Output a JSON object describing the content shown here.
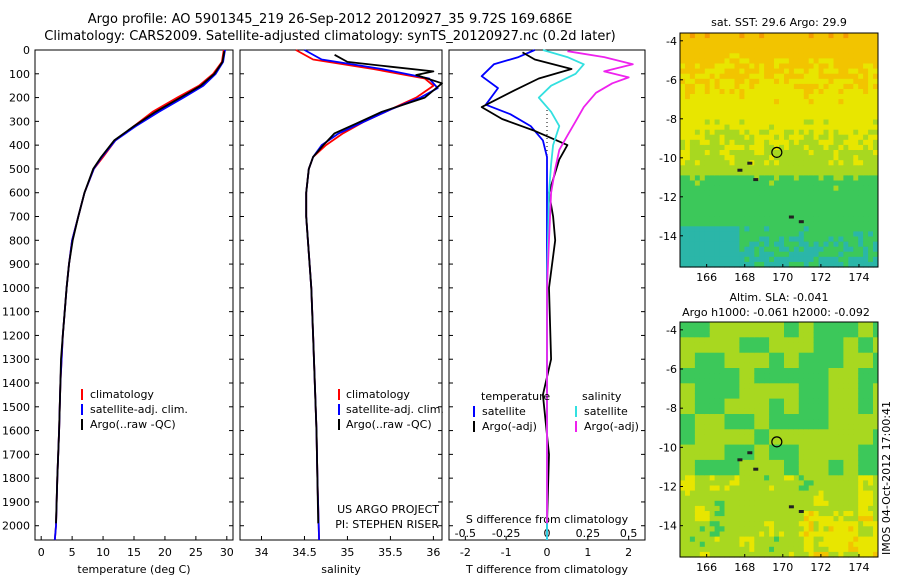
{
  "header": {
    "line1": "Argo profile: AO 5901345_219 26-Sep-2012 20120927_35 9.72S 169.686E",
    "line2": "Climatology: CARS2009. Satellite-adjusted climatology: synTS_20120927.nc (0.2d later)"
  },
  "colors": {
    "climatology": "#ff0000",
    "satellite": "#0000ff",
    "argo": "#000000",
    "sal_satellite": "#33e0e0",
    "sal_argo": "#ee22ee"
  },
  "chart_data": [
    {
      "type": "line",
      "xlabel": "temperature (deg C)",
      "ylabel": "",
      "xlim": [
        -1,
        31
      ],
      "ylim": [
        2060,
        0
      ],
      "xticks": [
        0,
        5,
        10,
        15,
        20,
        25,
        30
      ],
      "yticks": [
        0,
        100,
        200,
        300,
        400,
        500,
        600,
        700,
        800,
        900,
        1000,
        1100,
        1200,
        1300,
        1400,
        1500,
        1600,
        1700,
        1800,
        1900,
        2000
      ],
      "legend": [
        "climatology",
        "satellite-adj. clim.",
        "Argo(..raw -QC)"
      ],
      "series": [
        {
          "name": "climatology",
          "color": "#ff0000",
          "points": [
            [
              29.5,
              0
            ],
            [
              29.2,
              50
            ],
            [
              27.8,
              100
            ],
            [
              25.5,
              150
            ],
            [
              22,
              200
            ],
            [
              18,
              260
            ],
            [
              15,
              320
            ],
            [
              12,
              380
            ],
            [
              10,
              450
            ],
            [
              8.5,
              500
            ],
            [
              7,
              600
            ],
            [
              6,
              700
            ],
            [
              5,
              800
            ],
            [
              4.5,
              900
            ],
            [
              4.1,
              1000
            ],
            [
              3.8,
              1100
            ],
            [
              3.5,
              1200
            ],
            [
              3.3,
              1300
            ],
            [
              3.1,
              1400
            ],
            [
              2.9,
              1600
            ],
            [
              2.6,
              1800
            ],
            [
              2.4,
              2000
            ],
            [
              2.2,
              2060
            ]
          ]
        },
        {
          "name": "satellite-adj. clim.",
          "color": "#0000ff",
          "points": [
            [
              29.7,
              0
            ],
            [
              29.4,
              50
            ],
            [
              28.2,
              100
            ],
            [
              26.2,
              150
            ],
            [
              23,
              200
            ],
            [
              19,
              260
            ],
            [
              15.3,
              320
            ],
            [
              12,
              380
            ],
            [
              9.8,
              450
            ],
            [
              8.5,
              500
            ],
            [
              7,
              600
            ],
            [
              6,
              700
            ],
            [
              5,
              800
            ],
            [
              4.5,
              900
            ],
            [
              4.1,
              1000
            ],
            [
              3.8,
              1100
            ],
            [
              3.5,
              1200
            ],
            [
              3.3,
              1300
            ],
            [
              3.1,
              1400
            ],
            [
              2.9,
              1600
            ],
            [
              2.6,
              1800
            ],
            [
              2.4,
              2000
            ],
            [
              2.2,
              2060
            ]
          ]
        },
        {
          "name": "Argo(..raw -QC)",
          "color": "#000000",
          "points": [
            [
              29.6,
              5
            ],
            [
              29.3,
              50
            ],
            [
              28,
              100
            ],
            [
              25.8,
              150
            ],
            [
              22.5,
              200
            ],
            [
              18.5,
              260
            ],
            [
              15,
              320
            ],
            [
              11.8,
              380
            ],
            [
              9.7,
              450
            ],
            [
              8.4,
              500
            ],
            [
              7,
              600
            ],
            [
              6,
              700
            ],
            [
              5.1,
              800
            ],
            [
              4.5,
              900
            ],
            [
              4.1,
              1000
            ],
            [
              3.8,
              1100
            ],
            [
              3.5,
              1200
            ],
            [
              3.2,
              1300
            ],
            [
              3.1,
              1400
            ],
            [
              2.9,
              1600
            ],
            [
              2.6,
              1800
            ],
            [
              2.4,
              1990
            ]
          ]
        }
      ]
    },
    {
      "type": "line",
      "xlabel": "salinity",
      "xlim": [
        33.75,
        36.1
      ],
      "ylim": [
        2060,
        0
      ],
      "xticks": [
        34,
        34.5,
        35,
        35.5,
        36
      ],
      "legend": [
        "climatology",
        "satellite-adj. clim.",
        "Argo(..raw -QC)"
      ],
      "annotations": [
        "US ARGO PROJECT",
        "PI: STEPHEN RISER"
      ],
      "series": [
        {
          "name": "climatology",
          "color": "#ff0000",
          "points": [
            [
              34.4,
              0
            ],
            [
              34.6,
              40
            ],
            [
              35.3,
              80
            ],
            [
              35.9,
              120
            ],
            [
              36.0,
              150
            ],
            [
              35.8,
              200
            ],
            [
              35.5,
              250
            ],
            [
              35.2,
              300
            ],
            [
              34.95,
              350
            ],
            [
              34.75,
              400
            ],
            [
              34.6,
              450
            ],
            [
              34.55,
              500
            ],
            [
              34.52,
              600
            ],
            [
              34.52,
              700
            ],
            [
              34.54,
              800
            ],
            [
              34.56,
              900
            ],
            [
              34.58,
              1000
            ],
            [
              34.6,
              1200
            ],
            [
              34.62,
              1400
            ],
            [
              34.64,
              1600
            ],
            [
              34.65,
              1800
            ],
            [
              34.67,
              2060
            ]
          ]
        },
        {
          "name": "satellite-adj. clim.",
          "color": "#0000ff",
          "points": [
            [
              34.5,
              0
            ],
            [
              34.7,
              40
            ],
            [
              35.4,
              80
            ],
            [
              35.95,
              120
            ],
            [
              36.05,
              160
            ],
            [
              35.85,
              200
            ],
            [
              35.5,
              250
            ],
            [
              35.2,
              300
            ],
            [
              34.9,
              350
            ],
            [
              34.7,
              400
            ],
            [
              34.6,
              450
            ],
            [
              34.55,
              500
            ],
            [
              34.52,
              600
            ],
            [
              34.52,
              700
            ],
            [
              34.54,
              800
            ],
            [
              34.56,
              900
            ],
            [
              34.58,
              1000
            ],
            [
              34.6,
              1200
            ],
            [
              34.62,
              1400
            ],
            [
              34.64,
              1600
            ],
            [
              34.65,
              1800
            ],
            [
              34.67,
              2060
            ]
          ]
        },
        {
          "name": "Argo(..raw -QC)",
          "color": "#000000",
          "points": [
            [
              34.85,
              20
            ],
            [
              35.0,
              50
            ],
            [
              35.5,
              70
            ],
            [
              36.0,
              90
            ],
            [
              35.8,
              105
            ],
            [
              36.1,
              140
            ],
            [
              35.9,
              200
            ],
            [
              35.4,
              260
            ],
            [
              35.1,
              310
            ],
            [
              34.85,
              350
            ],
            [
              34.72,
              400
            ],
            [
              34.6,
              450
            ],
            [
              34.55,
              500
            ],
            [
              34.52,
              600
            ],
            [
              34.52,
              700
            ],
            [
              34.54,
              800
            ],
            [
              34.56,
              900
            ],
            [
              34.58,
              1000
            ],
            [
              34.6,
              1200
            ],
            [
              34.62,
              1400
            ],
            [
              34.64,
              1600
            ],
            [
              34.65,
              1800
            ],
            [
              34.66,
              1990
            ]
          ]
        }
      ]
    },
    {
      "type": "line",
      "xlabel_top": "S difference from climatology",
      "xlabel": "T difference from climatology",
      "xlim_t": [
        -2.4,
        2.4
      ],
      "xticks_t": [
        -2,
        -1,
        0,
        1,
        2
      ],
      "xticks_s": [
        -0.5,
        -0.25,
        0,
        0.25,
        0.5
      ],
      "ylim": [
        2060,
        0
      ],
      "legend_headers": [
        "temperature",
        "salinity"
      ],
      "legend": [
        "satellite",
        "Argo(-adj)",
        "satellite",
        "Argo(-adj)"
      ],
      "series": [
        {
          "name": "satellite",
          "group": "temperature",
          "color": "#0000ff",
          "points": [
            [
              -0.3,
              0
            ],
            [
              -0.7,
              30
            ],
            [
              -1.3,
              60
            ],
            [
              -1.6,
              110
            ],
            [
              -1.2,
              160
            ],
            [
              -1.5,
              230
            ],
            [
              -0.9,
              270
            ],
            [
              -0.4,
              320
            ],
            [
              -0.1,
              380
            ],
            [
              0,
              450
            ],
            [
              0,
              600
            ],
            [
              0,
              1000
            ],
            [
              0,
              1500
            ],
            [
              0,
              2060
            ]
          ]
        },
        {
          "name": "Argo(-adj)",
          "group": "temperature",
          "color": "#000000",
          "points": [
            [
              -0.6,
              10
            ],
            [
              -0.3,
              40
            ],
            [
              0.6,
              80
            ],
            [
              -0.2,
              120
            ],
            [
              -0.8,
              170
            ],
            [
              -1.6,
              240
            ],
            [
              -1.1,
              290
            ],
            [
              -0.3,
              340
            ],
            [
              0.5,
              400
            ],
            [
              0.3,
              460
            ],
            [
              0.05,
              600
            ],
            [
              0.15,
              700
            ],
            [
              0.2,
              800
            ],
            [
              0.05,
              1000
            ],
            [
              0.1,
              1300
            ],
            [
              -0.1,
              1450
            ],
            [
              0.05,
              1700
            ],
            [
              0,
              1990
            ]
          ]
        },
        {
          "name": "satellite",
          "group": "salinity",
          "color": "#33e0e0",
          "points": [
            [
              -0.1,
              0
            ],
            [
              0.5,
              30
            ],
            [
              0.9,
              60
            ],
            [
              0.7,
              100
            ],
            [
              0.1,
              150
            ],
            [
              -0.2,
              200
            ],
            [
              0.1,
              260
            ],
            [
              0.3,
              320
            ],
            [
              0.15,
              400
            ],
            [
              0.1,
              480
            ],
            [
              0.05,
              600
            ],
            [
              0,
              1000
            ],
            [
              0,
              1500
            ],
            [
              0,
              2060
            ]
          ]
        },
        {
          "name": "Argo(-adj)",
          "group": "salinity",
          "color": "#ee22ee",
          "points": [
            [
              0.5,
              5
            ],
            [
              1.4,
              30
            ],
            [
              2.1,
              60
            ],
            [
              1.4,
              90
            ],
            [
              2.0,
              115
            ],
            [
              1.6,
              140
            ],
            [
              1.2,
              180
            ],
            [
              0.9,
              240
            ],
            [
              0.7,
              300
            ],
            [
              0.5,
              360
            ],
            [
              0.3,
              420
            ],
            [
              0.2,
              500
            ],
            [
              0.1,
              600
            ],
            [
              0.05,
              800
            ],
            [
              0,
              1000
            ],
            [
              0,
              1990
            ]
          ]
        }
      ]
    },
    {
      "type": "heatmap",
      "title": "sat. SST: 29.6  Argo: 29.9",
      "xlim": [
        164.6,
        175
      ],
      "ylim": [
        -15.6,
        -3.6
      ],
      "xticks": [
        166,
        168,
        170,
        172,
        174
      ],
      "yticks": [
        -4,
        -6,
        -8,
        -10,
        -12,
        -14
      ],
      "marker": {
        "lon": 169.686,
        "lat": -9.72
      }
    },
    {
      "type": "heatmap",
      "title": "Altim. SLA: -0.041",
      "subtitle": "Argo h1000: -0.061 h2000: -0.092",
      "xlim": [
        164.6,
        175
      ],
      "ylim": [
        -15.6,
        -3.6
      ],
      "xticks": [
        166,
        168,
        170,
        172,
        174
      ],
      "yticks": [
        -4,
        -6,
        -8,
        -10,
        -12,
        -14
      ],
      "marker": {
        "lon": 169.686,
        "lat": -9.72
      }
    }
  ],
  "panel2": {
    "annotation1": "US ARGO PROJECT",
    "annotation2": "PI: STEPHEN RISER"
  },
  "stamp": "IMOS 04-Oct-2012 17:00:41"
}
